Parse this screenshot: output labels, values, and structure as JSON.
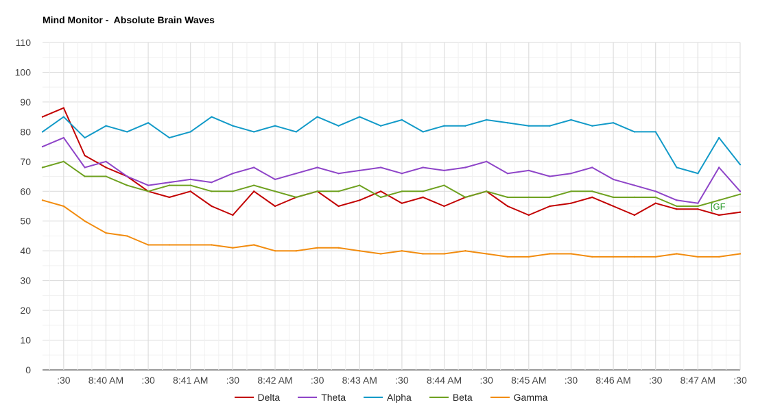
{
  "chart_data": {
    "type": "line",
    "title": "Mind Monitor -  Absolute Brain Waves",
    "xlabel": "",
    "ylabel": "",
    "ylim": [
      0,
      110
    ],
    "yticks": [
      0,
      10,
      20,
      30,
      40,
      50,
      60,
      70,
      80,
      90,
      100,
      110
    ],
    "xrange": [
      "8:39:15",
      "8:47:30"
    ],
    "xticks": [
      {
        "time": "8:39:30",
        "label": ":30"
      },
      {
        "time": "8:40:00",
        "label": "8:40 AM"
      },
      {
        "time": "8:40:30",
        "label": ":30"
      },
      {
        "time": "8:41:00",
        "label": "8:41 AM"
      },
      {
        "time": "8:41:30",
        "label": ":30"
      },
      {
        "time": "8:42:00",
        "label": "8:42 AM"
      },
      {
        "time": "8:42:30",
        "label": ":30"
      },
      {
        "time": "8:43:00",
        "label": "8:43 AM"
      },
      {
        "time": "8:43:30",
        "label": ":30"
      },
      {
        "time": "8:44:00",
        "label": "8:44 AM"
      },
      {
        "time": "8:44:30",
        "label": ":30"
      },
      {
        "time": "8:45:00",
        "label": "8:45 AM"
      },
      {
        "time": "8:45:30",
        "label": ":30"
      },
      {
        "time": "8:46:00",
        "label": "8:46 AM"
      },
      {
        "time": "8:46:30",
        "label": ":30"
      },
      {
        "time": "8:47:00",
        "label": "8:47 AM"
      },
      {
        "time": "8:47:30",
        "label": ":30"
      }
    ],
    "grid": true,
    "legend_position": "bottom",
    "annotations": [
      {
        "text": "[GF",
        "time": "8:47:09",
        "y": 55,
        "color": "#2f9e2f"
      }
    ],
    "x": [
      "8:39:15",
      "8:39:30",
      "8:39:45",
      "8:40:00",
      "8:40:15",
      "8:40:30",
      "8:40:45",
      "8:41:00",
      "8:41:15",
      "8:41:30",
      "8:41:45",
      "8:42:00",
      "8:42:15",
      "8:42:30",
      "8:42:45",
      "8:43:00",
      "8:43:15",
      "8:43:30",
      "8:43:45",
      "8:44:00",
      "8:44:15",
      "8:44:30",
      "8:44:45",
      "8:45:00",
      "8:45:15",
      "8:45:30",
      "8:45:45",
      "8:46:00",
      "8:46:15",
      "8:46:30",
      "8:46:45",
      "8:47:00",
      "8:47:15",
      "8:47:30"
    ],
    "series": [
      {
        "name": "Delta",
        "color": "#c20000",
        "values": [
          85,
          88,
          72,
          68,
          65,
          60,
          58,
          60,
          55,
          52,
          60,
          55,
          58,
          60,
          55,
          57,
          60,
          56,
          58,
          55,
          58,
          60,
          55,
          52,
          55,
          56,
          58,
          55,
          52,
          56,
          54,
          54,
          52,
          53
        ]
      },
      {
        "name": "Theta",
        "color": "#8e44c8",
        "values": [
          75,
          78,
          68,
          70,
          65,
          62,
          63,
          64,
          63,
          66,
          68,
          64,
          66,
          68,
          66,
          67,
          68,
          66,
          68,
          67,
          68,
          70,
          66,
          67,
          65,
          66,
          68,
          64,
          62,
          60,
          57,
          56,
          68,
          60
        ]
      },
      {
        "name": "Alpha",
        "color": "#129ac8",
        "values": [
          80,
          85,
          78,
          82,
          80,
          83,
          78,
          80,
          85,
          82,
          80,
          82,
          80,
          85,
          82,
          85,
          82,
          84,
          80,
          82,
          82,
          84,
          83,
          82,
          82,
          84,
          82,
          83,
          80,
          80,
          68,
          66,
          78,
          69
        ]
      },
      {
        "name": "Beta",
        "color": "#6ea11f",
        "values": [
          68,
          70,
          65,
          65,
          62,
          60,
          62,
          62,
          60,
          60,
          62,
          60,
          58,
          60,
          60,
          62,
          58,
          60,
          60,
          62,
          58,
          60,
          58,
          58,
          58,
          60,
          60,
          58,
          58,
          58,
          55,
          55,
          57,
          59
        ]
      },
      {
        "name": "Gamma",
        "color": "#f28c0f",
        "values": [
          57,
          55,
          50,
          46,
          45,
          42,
          42,
          42,
          42,
          41,
          42,
          40,
          40,
          41,
          41,
          40,
          39,
          40,
          39,
          39,
          40,
          39,
          38,
          38,
          39,
          39,
          38,
          38,
          38,
          38,
          39,
          38,
          38,
          39
        ]
      }
    ]
  }
}
